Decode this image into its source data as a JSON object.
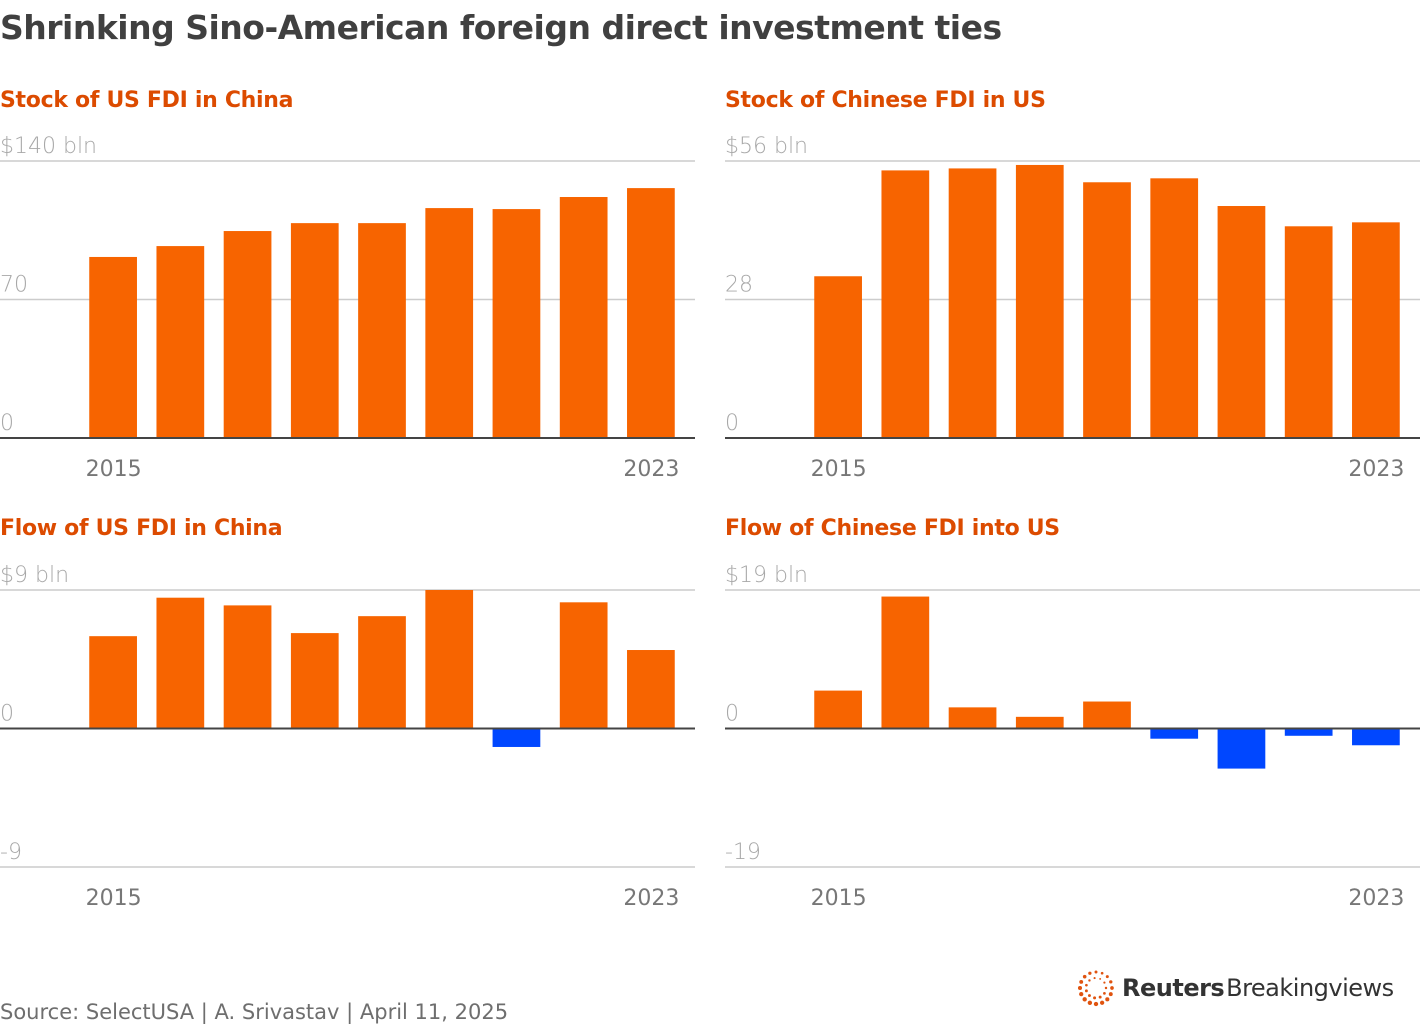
{
  "title": "Shrinking Sino-American foreign direct investment ties",
  "colors": {
    "positive": "#f76400",
    "negative": "#0047ff",
    "panel_title": "#dc4b00",
    "grid": "#cccccc",
    "axis": "#444444"
  },
  "chart_data": [
    {
      "type": "bar",
      "title": "Stock of US FDI in China",
      "unit_label": "$140 bln",
      "yticks": [
        "0",
        "70",
        "$140 bln"
      ],
      "ytick_values": [
        0,
        70,
        140
      ],
      "ylim": [
        0,
        140
      ],
      "xtick_labels": [
        "2015",
        "2023"
      ],
      "categories": [
        "2015",
        "2016",
        "2017",
        "2018",
        "2019",
        "2020",
        "2021",
        "2022",
        "2023"
      ],
      "values": [
        91.5,
        97.0,
        104.6,
        108.6,
        108.6,
        116.2,
        115.7,
        121.8,
        126.3
      ]
    },
    {
      "type": "bar",
      "title": "Stock of Chinese FDI in US",
      "unit_label": "$56 bln",
      "yticks": [
        "0",
        "28",
        "$56 bln"
      ],
      "ytick_values": [
        0,
        28,
        56
      ],
      "ylim": [
        0,
        56
      ],
      "xtick_labels": [
        "2015",
        "2023"
      ],
      "categories": [
        "2015",
        "2016",
        "2017",
        "2018",
        "2019",
        "2020",
        "2021",
        "2022",
        "2023"
      ],
      "values": [
        32.7,
        54.1,
        54.5,
        55.2,
        51.7,
        52.5,
        46.9,
        42.8,
        43.6
      ]
    },
    {
      "type": "bar",
      "title": "Flow of US FDI in China",
      "unit_label": "$9 bln",
      "yticks": [
        "-9",
        "0",
        "$9 bln"
      ],
      "ytick_values": [
        -9,
        0,
        9
      ],
      "ylim": [
        -9,
        9
      ],
      "xtick_labels": [
        "2015",
        "2023"
      ],
      "categories": [
        "2015",
        "2016",
        "2017",
        "2018",
        "2019",
        "2020",
        "2021",
        "2022",
        "2023"
      ],
      "values": [
        6.0,
        8.5,
        8.0,
        6.2,
        7.3,
        9.0,
        -1.2,
        8.2,
        5.1
      ]
    },
    {
      "type": "bar",
      "title": "Flow of Chinese FDI into US",
      "unit_label": "$19 bln",
      "yticks": [
        "-19",
        "0",
        "$19 bln"
      ],
      "ytick_values": [
        -19,
        0,
        19
      ],
      "ylim": [
        -19,
        19
      ],
      "xtick_labels": [
        "2015",
        "2023"
      ],
      "categories": [
        "2015",
        "2016",
        "2017",
        "2018",
        "2019",
        "2020",
        "2021",
        "2022",
        "2023"
      ],
      "values": [
        5.2,
        18.1,
        2.9,
        1.6,
        3.7,
        -1.4,
        -5.5,
        -1.0,
        -2.3
      ]
    }
  ],
  "footer": {
    "source": "Source: SelectUSA | A. Srivastav | April 11, 2025",
    "logo_bold": "Reuters",
    "logo_light": "Breakingviews"
  }
}
